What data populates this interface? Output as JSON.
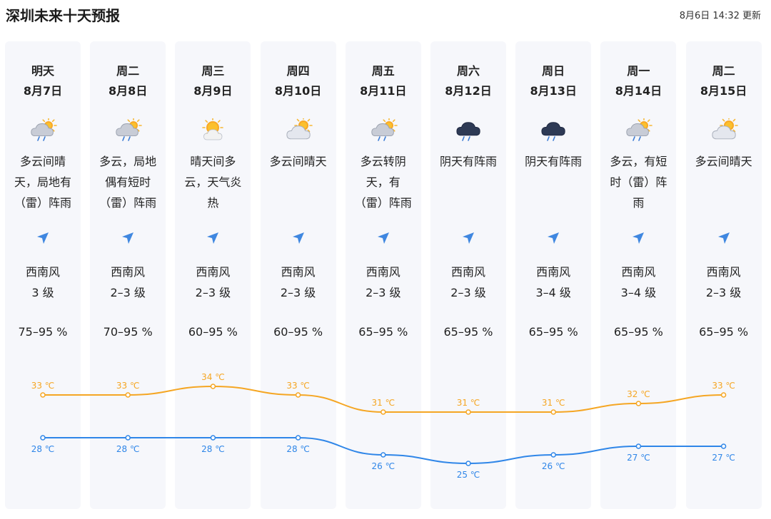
{
  "header": {
    "title": "深圳未来十天预报",
    "updated": "8月6日 14:32 更新"
  },
  "colors": {
    "high": "#f5a623",
    "low": "#2f86e8",
    "column_bg": "#f6f7fb",
    "arrow": "#3f87e0"
  },
  "days": [
    {
      "day": "明天",
      "date": "8月7日",
      "icon": "partly-cloudy-rain-icon",
      "desc": [
        "多云间晴",
        "天，局地有",
        "（雷）阵雨"
      ],
      "wind": "西南风",
      "level": "3 级",
      "humidity": "75–95 %"
    },
    {
      "day": "周二",
      "date": "8月8日",
      "icon": "partly-cloudy-rain-icon",
      "desc": [
        "多云，局地",
        "偶有短时",
        "（雷）阵雨"
      ],
      "wind": "西南风",
      "level": "2–3 级",
      "humidity": "70–95 %"
    },
    {
      "day": "周三",
      "date": "8月9日",
      "icon": "sunny-cloudy-icon",
      "desc": [
        "晴天间多",
        "云，天气炎",
        "热"
      ],
      "wind": "西南风",
      "level": "2–3 级",
      "humidity": "60–95 %"
    },
    {
      "day": "周四",
      "date": "8月10日",
      "icon": "partly-cloudy-icon",
      "desc": [
        "多云间晴天"
      ],
      "wind": "西南风",
      "level": "2–3 级",
      "humidity": "60–95 %"
    },
    {
      "day": "周五",
      "date": "8月11日",
      "icon": "partly-cloudy-rain-icon",
      "desc": [
        "多云转阴",
        "天，有",
        "（雷）阵雨"
      ],
      "wind": "西南风",
      "level": "2–3 级",
      "humidity": "65–95 %"
    },
    {
      "day": "周六",
      "date": "8月12日",
      "icon": "dark-cloud-rain-icon",
      "desc": [
        "阴天有阵雨"
      ],
      "wind": "西南风",
      "level": "2–3 级",
      "humidity": "65–95 %"
    },
    {
      "day": "周日",
      "date": "8月13日",
      "icon": "dark-cloud-rain-icon",
      "desc": [
        "阴天有阵雨"
      ],
      "wind": "西南风",
      "level": "3–4 级",
      "humidity": "65–95 %"
    },
    {
      "day": "周一",
      "date": "8月14日",
      "icon": "partly-cloudy-rain-icon",
      "desc": [
        "多云，有短",
        "时（雷）阵",
        "雨"
      ],
      "wind": "西南风",
      "level": "3–4 级",
      "humidity": "65–95 %"
    },
    {
      "day": "周二",
      "date": "8月15日",
      "icon": "partly-cloudy-icon",
      "desc": [
        "多云间晴天"
      ],
      "wind": "西南风",
      "level": "2–3 级",
      "humidity": "65–95 %"
    }
  ],
  "chart_data": {
    "type": "line",
    "categories": [
      "8月7日",
      "8月8日",
      "8月9日",
      "8月10日",
      "8月11日",
      "8月12日",
      "8月13日",
      "8月14日",
      "8月15日"
    ],
    "series": [
      {
        "values": [
          33,
          33,
          34,
          33,
          31,
          31,
          31,
          32,
          33
        ]
      },
      {
        "values": [
          28,
          28,
          28,
          28,
          26,
          25,
          26,
          27,
          27
        ]
      }
    ],
    "unit": "℃",
    "grid": false,
    "legend": "none"
  }
}
